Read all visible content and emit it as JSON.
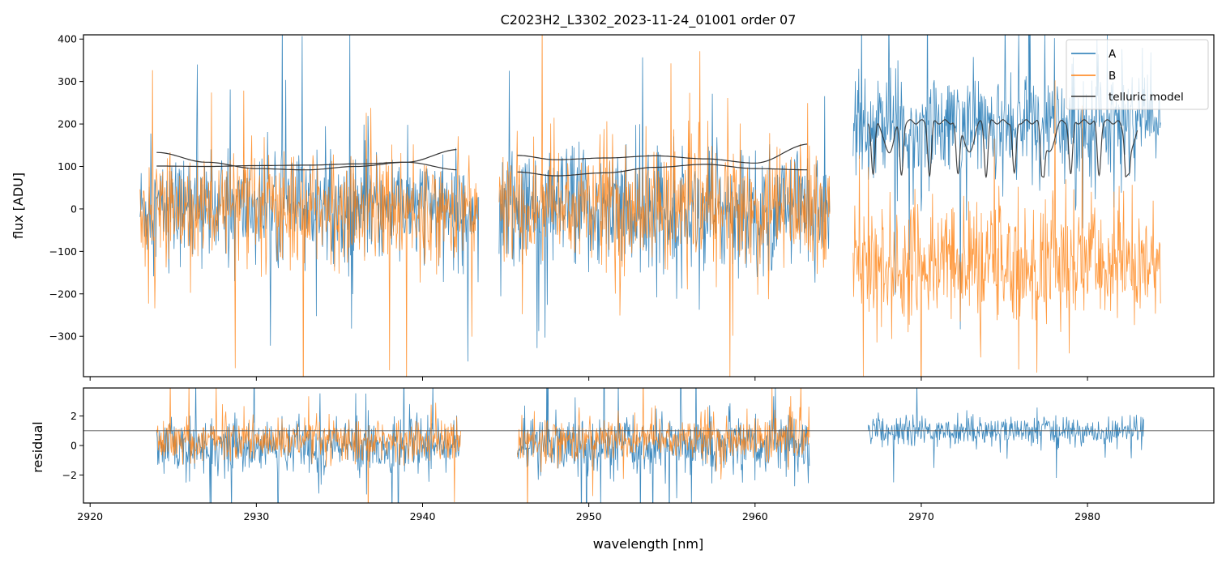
{
  "chart_data": [
    {
      "panel": "main",
      "type": "line",
      "title": "C2023H2_L3302_2023-11-24_01001  order 07",
      "xlabel": "",
      "ylabel": "flux [ADU]",
      "xlim": [
        2919.6,
        2987.6
      ],
      "ylim": [
        -395,
        410
      ],
      "yticks": [
        -300,
        -200,
        -100,
        0,
        100,
        200,
        300,
        400
      ],
      "yticklabels": [
        "−300",
        "−200",
        "−100",
        "0",
        "100",
        "200",
        "300",
        "400"
      ],
      "xticks": [
        2920,
        2930,
        2940,
        2950,
        2960,
        2970,
        2980
      ],
      "legend": {
        "placement": "top-right",
        "entries": [
          "A",
          "B",
          "telluric model"
        ]
      },
      "grid": false,
      "segments": [
        {
          "x_range": [
            2923.0,
            2943.4
          ],
          "A_level": 0,
          "A_noise": 110,
          "B_level": 0,
          "B_noise": 110
        },
        {
          "x_range": [
            2944.6,
            2964.5
          ],
          "A_level": 0,
          "A_noise": 130,
          "B_level": 0,
          "B_noise": 130
        },
        {
          "x_range": [
            2965.9,
            2984.4
          ],
          "A_level": 200,
          "A_noise": 110,
          "B_level": -130,
          "B_noise": 130
        }
      ],
      "series": [
        {
          "name": "A",
          "color": "#1f77b4"
        },
        {
          "name": "B",
          "color": "#ff7f0e"
        },
        {
          "name": "telluric model",
          "color": "#333333",
          "curves": [
            {
              "x": [
                2924.0,
                2927.0,
                2930.0,
                2933.0,
                2936.0,
                2939.0,
                2942.2
              ],
              "y": [
                133,
                110,
                95,
                92,
                100,
                110,
                140
              ]
            },
            {
              "x": [
                2924.0,
                2927.0,
                2930.0,
                2933.0,
                2936.0,
                2939.0,
                2942.2
              ],
              "y": [
                101,
                100,
                102,
                103,
                106,
                110,
                92
              ]
            },
            {
              "x": [
                2945.7,
                2948.0,
                2951.0,
                2954.0,
                2957.0,
                2960.0,
                2963.3
              ],
              "y": [
                126,
                116,
                120,
                125,
                118,
                108,
                153
              ]
            },
            {
              "x": [
                2945.7,
                2948.0,
                2951.0,
                2954.0,
                2957.0,
                2960.0,
                2963.3
              ],
              "y": [
                87,
                78,
                85,
                98,
                105,
                95,
                92
              ]
            }
          ],
          "telluric_region": {
            "x_range": [
              2966.8,
              2983.0
            ],
            "continuum": 205,
            "min": 80
          }
        }
      ]
    },
    {
      "panel": "residual",
      "type": "line",
      "title": "",
      "xlabel": "wavelength [nm]",
      "ylabel": "residual",
      "xlim": [
        2919.6,
        2987.6
      ],
      "ylim": [
        -3.9,
        3.9
      ],
      "yticks": [
        -2,
        0,
        2
      ],
      "yticklabels": [
        "−2",
        "0",
        "2"
      ],
      "xticks": [
        2920,
        2930,
        2940,
        2950,
        2960,
        2970,
        2980
      ],
      "xticklabels": [
        "2920",
        "2930",
        "2940",
        "2950",
        "2960",
        "2970",
        "2980"
      ],
      "reference_line": 1.0,
      "grid": false,
      "segments": [
        {
          "x_range": [
            2924.0,
            2942.3
          ],
          "A_level": 0,
          "A_noise": 1.6,
          "B_level": 0.3,
          "B_noise": 1.2
        },
        {
          "x_range": [
            2945.7,
            2963.3
          ],
          "A_level": 0,
          "A_noise": 1.9,
          "B_level": 0.4,
          "B_noise": 1.4
        },
        {
          "x_range": [
            2966.8,
            2983.4
          ],
          "A_level": 1.0,
          "A_noise": 0.9
        }
      ],
      "series": [
        {
          "name": "A",
          "color": "#1f77b4"
        },
        {
          "name": "B",
          "color": "#ff7f0e"
        }
      ]
    }
  ]
}
